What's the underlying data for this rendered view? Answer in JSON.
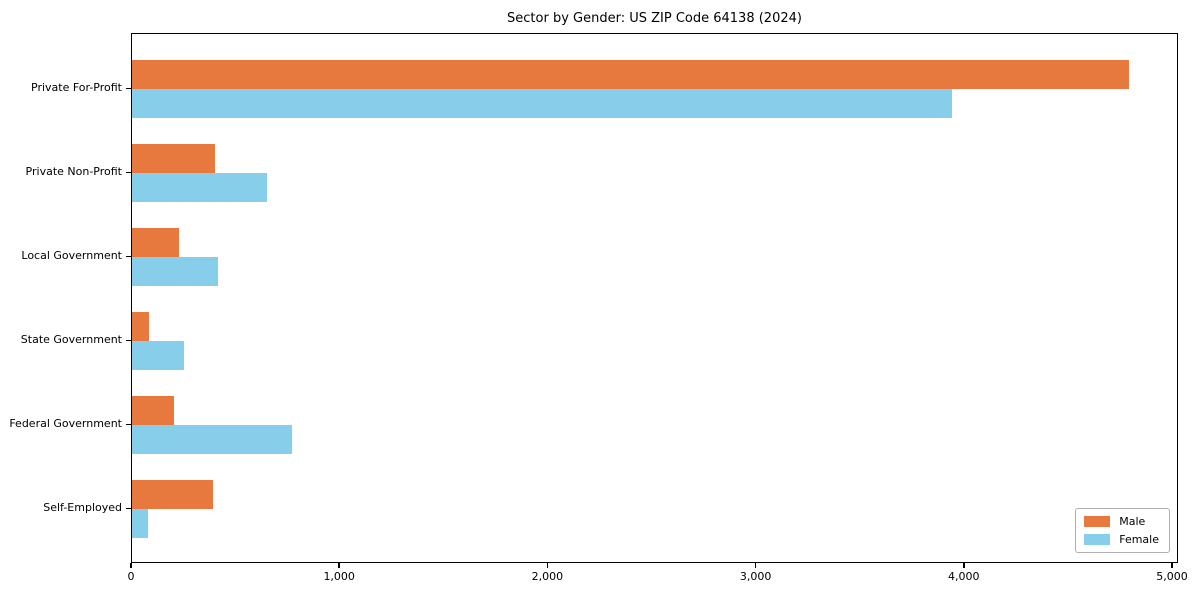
{
  "chart_data": {
    "type": "bar",
    "orientation": "horizontal",
    "title": "Sector by Gender: US ZIP Code 64138 (2024)",
    "categories": [
      "Private For-Profit",
      "Private Non-Profit",
      "Local Government",
      "State Government",
      "Federal Government",
      "Self-Employed"
    ],
    "series": [
      {
        "name": "Male",
        "color": "#e8793e",
        "values": [
          4790,
          400,
          225,
          80,
          200,
          390
        ]
      },
      {
        "name": "Female",
        "color": "#87ceeb",
        "values": [
          3940,
          650,
          415,
          250,
          770,
          75
        ]
      }
    ],
    "xlabel": "",
    "ylabel": "",
    "xlim": [
      0,
      5000
    ],
    "x_ticks": [
      {
        "value": 0,
        "label": "0"
      },
      {
        "value": 1000,
        "label": "1,000"
      },
      {
        "value": 2000,
        "label": "2,000"
      },
      {
        "value": 3000,
        "label": "3,000"
      },
      {
        "value": 4000,
        "label": "4,000"
      },
      {
        "value": 5000,
        "label": "5,000"
      }
    ],
    "grid": false,
    "legend_position": "lower right",
    "background_color": "#ffffff",
    "axis_color": "#000000"
  }
}
